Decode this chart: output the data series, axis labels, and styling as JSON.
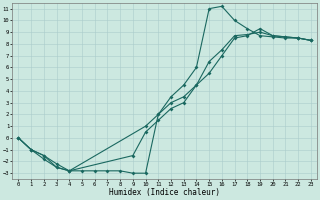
{
  "title": "",
  "xlabel": "Humidex (Indice chaleur)",
  "xlim": [
    -0.5,
    23.5
  ],
  "ylim": [
    -3.5,
    11.5
  ],
  "xticks": [
    0,
    1,
    2,
    3,
    4,
    5,
    6,
    7,
    8,
    9,
    10,
    11,
    12,
    13,
    14,
    15,
    16,
    17,
    18,
    19,
    20,
    21,
    22,
    23
  ],
  "yticks": [
    -3,
    -2,
    -1,
    0,
    1,
    2,
    3,
    4,
    5,
    6,
    7,
    8,
    9,
    10,
    11
  ],
  "background_color": "#cce8e0",
  "grid_color": "#aacccc",
  "line_color": "#1a6860",
  "line1_x": [
    0,
    1,
    2,
    3,
    4,
    5,
    6,
    7,
    8,
    9,
    10,
    11,
    12,
    13,
    14,
    15,
    16,
    17,
    18,
    19,
    20,
    21,
    22,
    23
  ],
  "line1_y": [
    0,
    -1,
    -1.8,
    -2.5,
    -2.8,
    -2.8,
    -2.8,
    -2.8,
    -2.8,
    -3.0,
    -3.0,
    2.0,
    3.5,
    4.5,
    6.0,
    11.0,
    11.2,
    10.0,
    9.3,
    8.7,
    8.6,
    8.5,
    8.5,
    8.3
  ],
  "line2_x": [
    0,
    1,
    2,
    3,
    4,
    10,
    11,
    12,
    13,
    14,
    15,
    16,
    17,
    18,
    19,
    20,
    21,
    22,
    23
  ],
  "line2_y": [
    0,
    -1,
    -1.5,
    -2.5,
    -2.8,
    1.0,
    2.0,
    3.0,
    3.5,
    4.5,
    5.5,
    7.0,
    8.5,
    8.7,
    9.3,
    8.7,
    8.6,
    8.5,
    8.3
  ],
  "line3_x": [
    0,
    1,
    2,
    3,
    4,
    9,
    10,
    11,
    12,
    13,
    14,
    15,
    16,
    17,
    18,
    19,
    20,
    21,
    22,
    23
  ],
  "line3_y": [
    0,
    -1,
    -1.5,
    -2.2,
    -2.8,
    -1.5,
    0.5,
    1.5,
    2.5,
    3.0,
    4.5,
    6.5,
    7.5,
    8.7,
    8.8,
    9.0,
    8.7,
    8.6,
    8.5,
    8.3
  ]
}
